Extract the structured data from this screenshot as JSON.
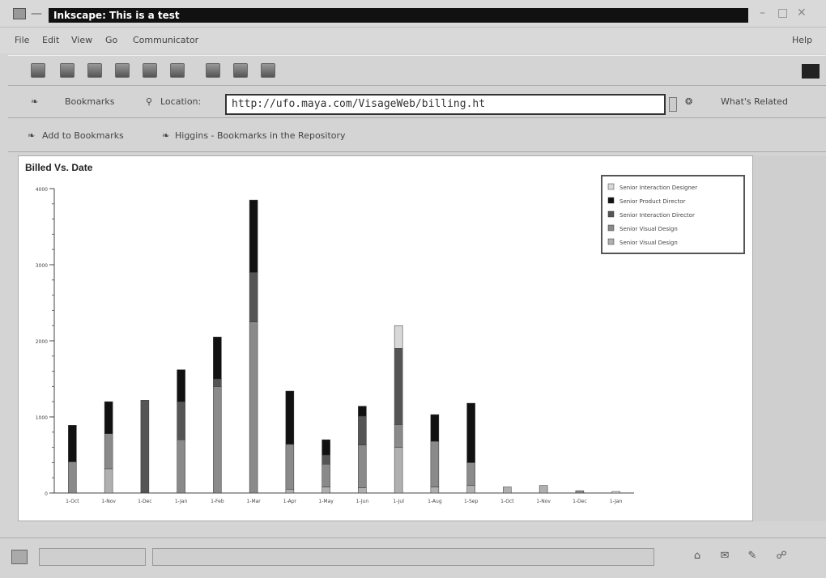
{
  "window": {
    "title": "Inkscape: This is a test",
    "menu": [
      "File",
      "Edit",
      "View",
      "Go",
      "Communicator"
    ],
    "help": "Help"
  },
  "location_bar": {
    "bookmarks_label": "Bookmarks",
    "location_label": "Location:",
    "url": "http://ufo.maya.com/VisageWeb/billing.ht",
    "related_label": "What's Related"
  },
  "personal_bar": {
    "add_bookmark": "Add to Bookmarks",
    "higgins": "Higgins - Bookmarks in the Repository"
  },
  "chart_data": {
    "type": "bar",
    "stacked": true,
    "title": "Billed Vs. Date",
    "ylim": [
      0,
      4000
    ],
    "yticks": [
      0,
      1000,
      2000,
      3000,
      4000
    ],
    "ytick_labels": [
      "0",
      "1000",
      "2000",
      "3000",
      "4000"
    ],
    "categories": [
      "1-Oct",
      "1-Nov",
      "1-Dec",
      "1-Jan",
      "1-Feb",
      "1-Mar",
      "1-Apr",
      "1-May",
      "1-Jun",
      "1-Jul",
      "1-Aug",
      "1-Sep",
      "1-Oct",
      "1-Nov",
      "1-Dec",
      "1-Jan"
    ],
    "legend_position": "top-right",
    "series": [
      {
        "name": "Senior Interaction Designer",
        "color": "#d8d8d8",
        "values": [
          0,
          0,
          0,
          0,
          0,
          0,
          0,
          0,
          0,
          300,
          0,
          0,
          0,
          0,
          0,
          20
        ]
      },
      {
        "name": "Senior Product Director",
        "color": "#111111",
        "values": [
          480,
          420,
          0,
          420,
          550,
          950,
          700,
          200,
          130,
          0,
          350,
          780,
          0,
          0,
          0,
          0
        ]
      },
      {
        "name": "Senior Interaction Director",
        "color": "#555555",
        "values": [
          0,
          0,
          1220,
          500,
          100,
          650,
          0,
          120,
          380,
          1000,
          0,
          0,
          0,
          0,
          0,
          0
        ]
      },
      {
        "name": "Senior Visual Design",
        "color": "#8a8a8a",
        "values": [
          410,
          460,
          0,
          700,
          1400,
          2250,
          590,
          300,
          560,
          300,
          600,
          300,
          0,
          0,
          30,
          0
        ]
      },
      {
        "name": "Senior Visual Design",
        "color": "#b0b0b0",
        "values": [
          0,
          320,
          0,
          0,
          0,
          0,
          50,
          80,
          70,
          600,
          80,
          100,
          80,
          100,
          0,
          0
        ]
      }
    ]
  },
  "colors": {
    "window_bg": "#d4d4d4",
    "title_active": "#111111",
    "content_bg": "#ffffff"
  }
}
